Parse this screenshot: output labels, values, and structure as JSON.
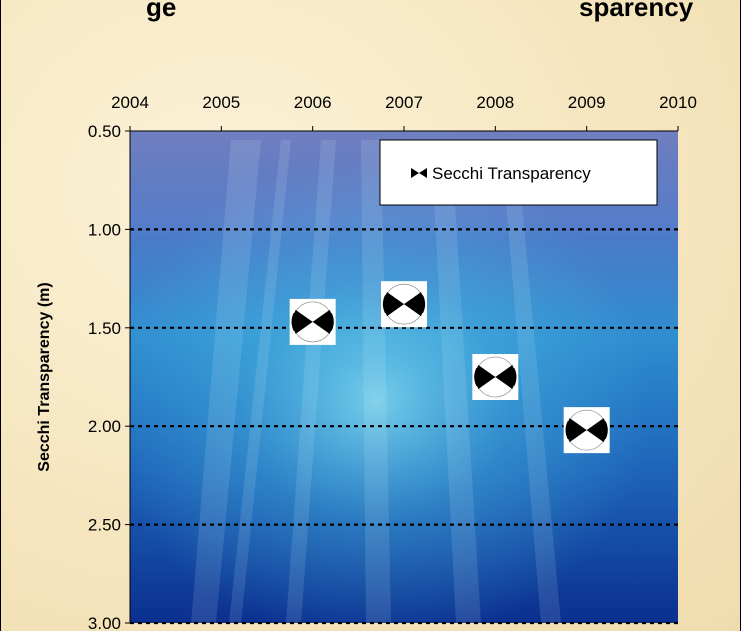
{
  "chart_data": {
    "type": "scatter",
    "title": "...ge ... Transparency",
    "title_visible_fragments": [
      "ge",
      "sparency"
    ],
    "xlabel": "",
    "ylabel": "Secchi Transparency (m)",
    "x_axis_position": "top",
    "y_axis_inverted": true,
    "xlim": [
      2004,
      2010
    ],
    "ylim": [
      0.5,
      3.0
    ],
    "x_ticks": [
      "2004",
      "2005",
      "2006",
      "2007",
      "2008",
      "2009",
      "2010"
    ],
    "y_ticks": [
      "0.50",
      "1.00",
      "1.50",
      "2.00",
      "2.50",
      "3.00"
    ],
    "gridlines": "horizontal dotted",
    "legend_position": "top-right",
    "background": "underwater photo",
    "series": [
      {
        "name": "Secchi Transparency",
        "marker": "secchi-disk-icon",
        "x": [
          2006,
          2007,
          2008,
          2009
        ],
        "y": [
          1.47,
          1.38,
          1.75,
          2.02
        ]
      }
    ]
  }
}
